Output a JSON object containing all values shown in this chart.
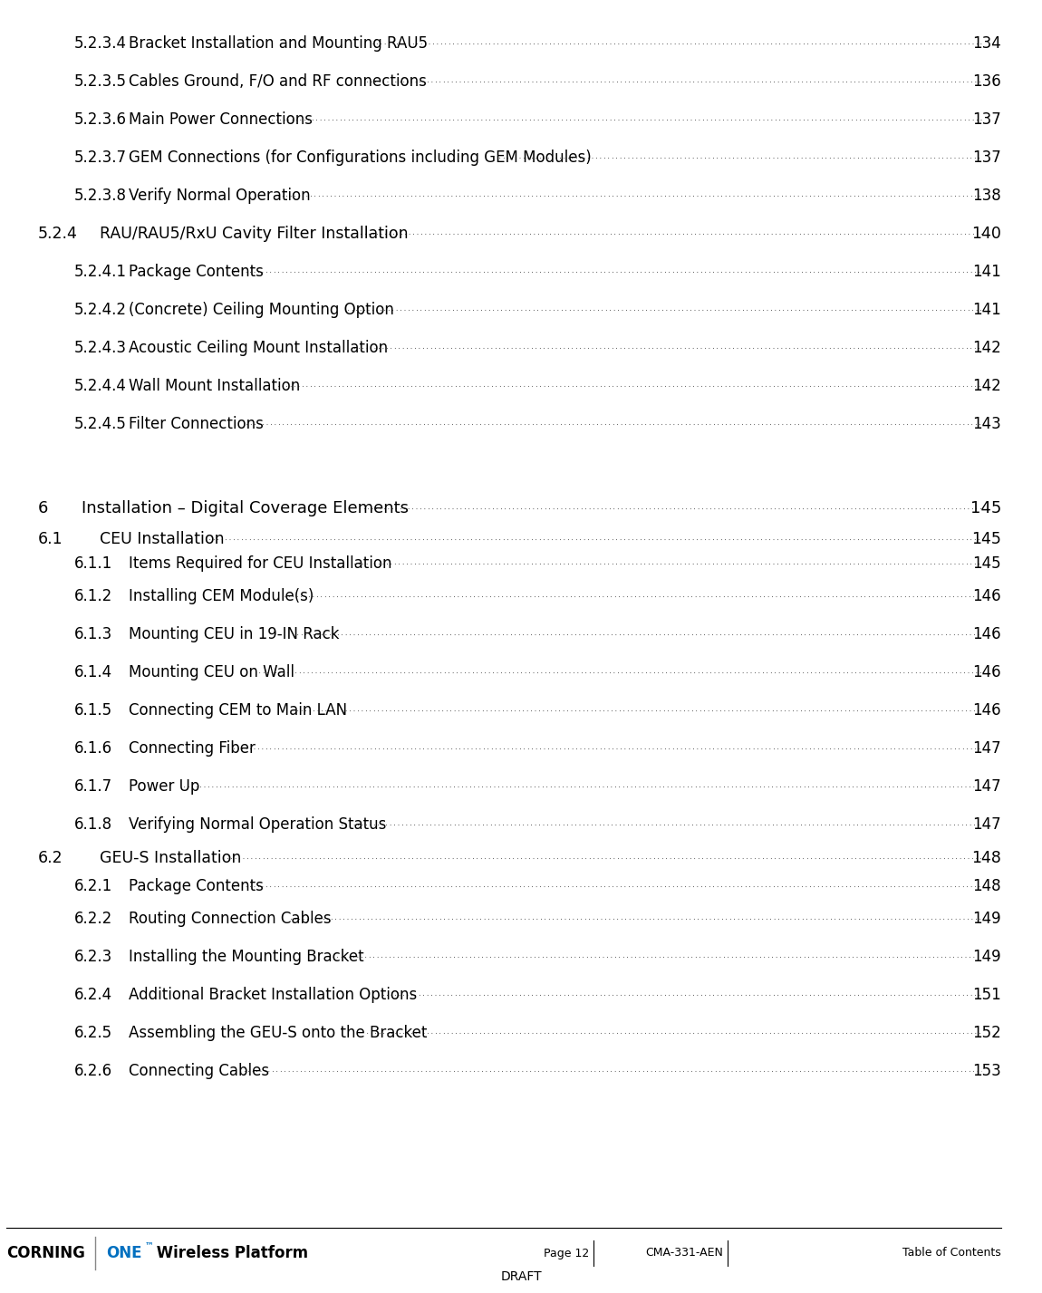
{
  "bg_color": "#ffffff",
  "text_color": "#000000",
  "footer_line_color": "#000000",
  "entries": [
    {
      "level": 3,
      "number": "5.2.3.4",
      "title": "Bracket Installation and Mounting RAU5",
      "page": "134",
      "extra_space_before": 0
    },
    {
      "level": 3,
      "number": "5.2.3.5",
      "title": "Cables Ground, F/O and RF connections",
      "page": "136",
      "extra_space_before": 0
    },
    {
      "level": 3,
      "number": "5.2.3.6",
      "title": "Main Power Connections",
      "page": "137",
      "extra_space_before": 0
    },
    {
      "level": 3,
      "number": "5.2.3.7",
      "title": "GEM Connections (for Configurations including GEM Modules)",
      "page": "137",
      "extra_space_before": 0
    },
    {
      "level": 3,
      "number": "5.2.3.8",
      "title": "Verify Normal Operation",
      "page": "138",
      "extra_space_before": 0
    },
    {
      "level": 2,
      "number": "5.2.4",
      "title": "RAU/RAU5/RxU Cavity Filter Installation",
      "page": "140",
      "extra_space_before": 0
    },
    {
      "level": 3,
      "number": "5.2.4.1",
      "title": "Package Contents",
      "page": "141",
      "extra_space_before": 0
    },
    {
      "level": 3,
      "number": "5.2.4.2",
      "title": "(Concrete) Ceiling Mounting Option",
      "page": "141",
      "extra_space_before": 0
    },
    {
      "level": 3,
      "number": "5.2.4.3",
      "title": "Acoustic Ceiling Mount Installation",
      "page": "142",
      "extra_space_before": 0
    },
    {
      "level": 3,
      "number": "5.2.4.4",
      "title": "Wall Mount Installation",
      "page": "142",
      "extra_space_before": 0
    },
    {
      "level": 3,
      "number": "5.2.4.5",
      "title": "Filter Connections",
      "page": "143",
      "extra_space_before": 0
    },
    {
      "level": 0,
      "number": "",
      "title": "",
      "page": "",
      "extra_space_before": 0
    },
    {
      "level": 1,
      "number": "6",
      "title": "Installation – Digital Coverage Elements",
      "page": "145",
      "extra_space_before": 0
    },
    {
      "level": 2,
      "number": "6.1",
      "title": "CEU Installation",
      "page": "145",
      "extra_space_before": 0
    },
    {
      "level": 3,
      "number": "6.1.1",
      "title": "Items Required for CEU Installation",
      "page": "145",
      "extra_space_before": 0
    },
    {
      "level": 3,
      "number": "6.1.2",
      "title": "Installing CEM Module(s)",
      "page": "146",
      "extra_space_before": 0
    },
    {
      "level": 3,
      "number": "6.1.3",
      "title": "Mounting CEU in 19-IN Rack",
      "page": "146",
      "extra_space_before": 0
    },
    {
      "level": 3,
      "number": "6.1.4",
      "title": "Mounting CEU on Wall",
      "page": "146",
      "extra_space_before": 0
    },
    {
      "level": 3,
      "number": "6.1.5",
      "title": "Connecting CEM to Main LAN",
      "page": "146",
      "extra_space_before": 0
    },
    {
      "level": 3,
      "number": "6.1.6",
      "title": "Connecting Fiber",
      "page": "147",
      "extra_space_before": 0
    },
    {
      "level": 3,
      "number": "6.1.7",
      "title": "Power Up",
      "page": "147",
      "extra_space_before": 0
    },
    {
      "level": 3,
      "number": "6.1.8",
      "title": "Verifying Normal Operation Status",
      "page": "147",
      "extra_space_before": 0
    },
    {
      "level": 2,
      "number": "6.2",
      "title": "GEU-S Installation",
      "page": "148",
      "extra_space_before": 0
    },
    {
      "level": 3,
      "number": "6.2.1",
      "title": "Package Contents",
      "page": "148",
      "extra_space_before": 0
    },
    {
      "level": 3,
      "number": "6.2.2",
      "title": "Routing Connection Cables",
      "page": "149",
      "extra_space_before": 0
    },
    {
      "level": 3,
      "number": "6.2.3",
      "title": "Installing the Mounting Bracket",
      "page": "149",
      "extra_space_before": 0
    },
    {
      "level": 3,
      "number": "6.2.4",
      "title": "Additional Bracket Installation Options",
      "page": "151",
      "extra_space_before": 0
    },
    {
      "level": 3,
      "number": "6.2.5",
      "title": "Assembling the GEU-S onto the Bracket",
      "page": "152",
      "extra_space_before": 0
    },
    {
      "level": 3,
      "number": "6.2.6",
      "title": "Connecting Cables",
      "page": "153",
      "extra_space_before": 0
    }
  ],
  "footer_draft": "DRAFT",
  "corning_color": "#000000",
  "one_color": "#0070c0",
  "font_size_l1": 13.0,
  "font_size_l2": 12.5,
  "font_size_l3": 12.0,
  "dot_size": 10.0,
  "page_num_size": 12.0
}
